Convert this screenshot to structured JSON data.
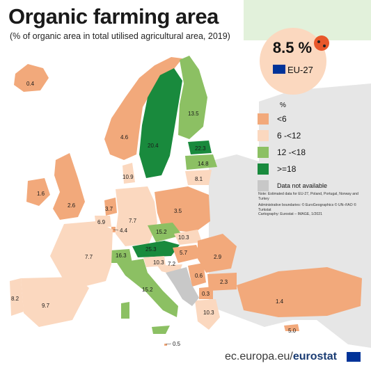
{
  "title": "Organic farming area",
  "subtitle": "(% of organic area in total utilised agricultural area, 2019)",
  "eu_badge": {
    "value": "8.5 %",
    "label": "EU-27"
  },
  "legend": {
    "unit": "%",
    "items": [
      {
        "label": "<6",
        "color": "#f2a97b"
      },
      {
        "label": "6 -<12",
        "color": "#fbd8bf"
      },
      {
        "label": "12 -<18",
        "color": "#8cc063"
      },
      {
        "label": ">=18",
        "color": "#198a3d"
      },
      {
        "label": "Data not available",
        "color": "#c8c8c8"
      }
    ]
  },
  "notes": [
    "Note: Estimated data for EU-27, Poland, Portugal, Norway and Turkey",
    "Administrative boundaries: © EuroGeographics © UN–FAO © Turkstat",
    "Cartography: Eurostat – IMAGE, 1/2021"
  ],
  "countries": [
    {
      "name": "Iceland",
      "value": "0.4",
      "class": 1
    },
    {
      "name": "Norway",
      "value": "4.6",
      "class": 1
    },
    {
      "name": "Sweden",
      "value": "20.4",
      "class": 4
    },
    {
      "name": "Finland",
      "value": "13.5",
      "class": 3
    },
    {
      "name": "Estonia",
      "value": "22.3",
      "class": 4
    },
    {
      "name": "Latvia",
      "value": "14.8",
      "class": 3
    },
    {
      "name": "Lithuania",
      "value": "8.1",
      "class": 2
    },
    {
      "name": "Denmark",
      "value": "10.9",
      "class": 2
    },
    {
      "name": "Ireland",
      "value": "1.6",
      "class": 1
    },
    {
      "name": "United Kingdom",
      "value": "2.6",
      "class": 1
    },
    {
      "name": "Netherlands",
      "value": "3.7",
      "class": 1
    },
    {
      "name": "Belgium",
      "value": "6.9",
      "class": 2
    },
    {
      "name": "Luxembourg",
      "value": "4.4",
      "class": 1
    },
    {
      "name": "Germany",
      "value": "7.7",
      "class": 2
    },
    {
      "name": "Poland",
      "value": "3.5",
      "class": 1
    },
    {
      "name": "Czechia",
      "value": "15.2",
      "class": 3
    },
    {
      "name": "Slovakia",
      "value": "10.3",
      "class": 2
    },
    {
      "name": "Austria",
      "value": "25.3",
      "class": 4
    },
    {
      "name": "Switzerland",
      "value": "16.3",
      "class": 3
    },
    {
      "name": "France",
      "value": "7.7",
      "class": 2
    },
    {
      "name": "Hungary",
      "value": "5.7",
      "class": 1
    },
    {
      "name": "Slovenia",
      "value": "10.3",
      "class": 2
    },
    {
      "name": "Croatia",
      "value": "7.2",
      "class": 2
    },
    {
      "name": "Romania",
      "value": "2.9",
      "class": 1
    },
    {
      "name": "Serbia",
      "value": "0.6",
      "class": 1
    },
    {
      "name": "Bulgaria",
      "value": "2.3",
      "class": 1
    },
    {
      "name": "North Macedonia",
      "value": "0.3",
      "class": 1
    },
    {
      "name": "Italy",
      "value": "15.2",
      "class": 3
    },
    {
      "name": "Portugal",
      "value": "8.2",
      "class": 2
    },
    {
      "name": "Spain",
      "value": "9.7",
      "class": 2
    },
    {
      "name": "Greece",
      "value": "10.3",
      "class": 2
    },
    {
      "name": "Turkey",
      "value": "1.4",
      "class": 1
    },
    {
      "name": "Cyprus",
      "value": "5.0",
      "class": 1
    },
    {
      "name": "Malta",
      "value": "0.5",
      "class": 1
    },
    {
      "name": "Bosnia and Herzegovina",
      "value": "",
      "class": 5
    },
    {
      "name": "Montenegro",
      "value": "",
      "class": 5
    },
    {
      "name": "Albania",
      "value": "",
      "class": 5
    },
    {
      "name": "Kosovo",
      "value": "",
      "class": 5
    }
  ],
  "footer": {
    "site": "ec.europa.eu/",
    "brand": "eurostat"
  }
}
